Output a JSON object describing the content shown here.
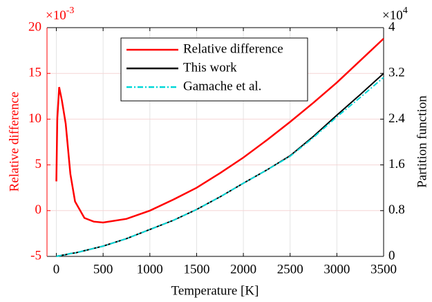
{
  "chart_data": {
    "type": "line",
    "xlabel": "Temperature [K]",
    "ylabel": "Relative difference",
    "y2label": "Partition function",
    "y_scale_label": {
      "base": "×10",
      "exponent": "-3"
    },
    "y2_scale_label": {
      "base": "×10",
      "exponent": "4"
    },
    "x": [
      0,
      10,
      30,
      60,
      100,
      150,
      200,
      300,
      400,
      500,
      750,
      1000,
      1250,
      1500,
      1750,
      2000,
      2250,
      2500,
      2750,
      3000,
      3250,
      3500
    ],
    "series": [
      {
        "name": "Relative difference",
        "color": "#ff0000",
        "axis": "y",
        "style": "solid",
        "values": [
          3.2,
          10,
          13.5,
          12,
          9.5,
          4,
          1,
          -0.8,
          -1.2,
          -1.3,
          -0.9,
          0,
          1.2,
          2.5,
          4.1,
          5.8,
          7.7,
          9.7,
          11.8,
          14,
          16.4,
          18.8
        ]
      },
      {
        "name": "This work",
        "color": "#000000",
        "axis": "y2",
        "style": "solid",
        "values": [
          0,
          0.005,
          0.01,
          0.02,
          0.03,
          0.05,
          0.06,
          0.1,
          0.14,
          0.18,
          0.31,
          0.47,
          0.63,
          0.82,
          1.04,
          1.28,
          1.51,
          1.76,
          2.1,
          2.47,
          2.83,
          3.2
        ]
      },
      {
        "name": "Gamache et al.",
        "color": "#00d8d8",
        "axis": "y2",
        "style": "dashdot",
        "values": [
          0,
          0.005,
          0.01,
          0.02,
          0.03,
          0.05,
          0.06,
          0.1,
          0.14,
          0.18,
          0.31,
          0.47,
          0.63,
          0.82,
          1.04,
          1.28,
          1.51,
          1.75,
          2.08,
          2.44,
          2.78,
          3.13
        ]
      }
    ],
    "xlim": [
      -100,
      3500
    ],
    "xticks": [
      0,
      500,
      1000,
      1500,
      2000,
      2500,
      3000,
      3500
    ],
    "ylim": [
      -5,
      20
    ],
    "yticks": [
      -5,
      0,
      5,
      10,
      15,
      20
    ],
    "y_axis_color": "#ff0000",
    "y2lim": [
      0,
      4
    ],
    "y2ticks": [
      0,
      0.8,
      1.6,
      2.4,
      3.2,
      4
    ],
    "grid": true,
    "legend": "top"
  }
}
